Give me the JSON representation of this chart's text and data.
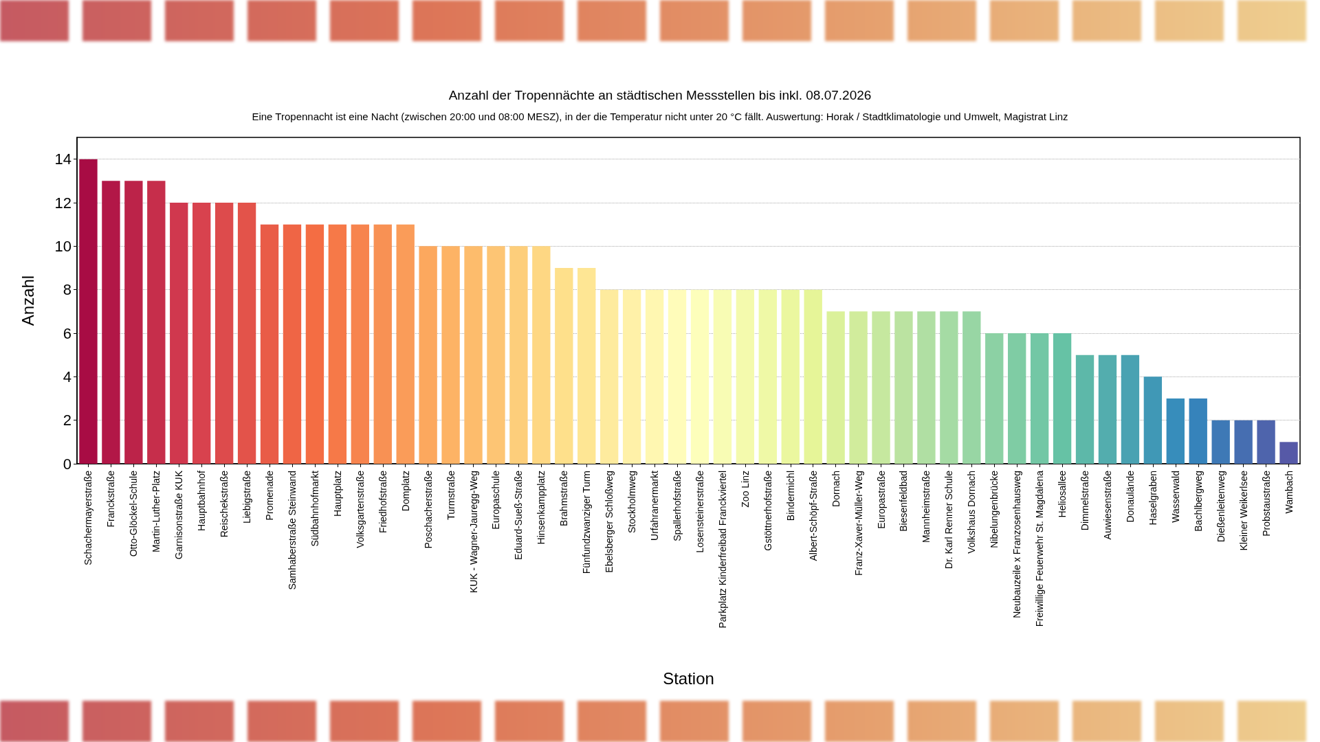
{
  "chart_data": {
    "type": "bar",
    "title": "Anzahl der Tropennächte an städtischen Messstellen bis inkl. 08.07.2026",
    "subtitle": "Eine Tropennacht ist eine Nacht (zwischen 20:00 und 08:00 MESZ), in der die Temperatur nicht unter 20 °C fällt. Auswertung: Horak / Stadtklimatologie und Umwelt, Magistrat Linz",
    "xlabel": "Station",
    "ylabel": "Anzahl",
    "categories": [
      "Schachermayerstraße",
      "Franckstraße",
      "Otto-Glöckel-Schule",
      "Martin-Luther-Platz",
      "Garnisonstraße KUK",
      "Hauptbahnhof",
      "Reischekstraße",
      "Liebigstraße",
      "Promenade",
      "Samhaberstraße Steinwand",
      "Südbahnhofmarkt",
      "Hauptplatz",
      "Volksgartenstraße",
      "Friedhofstraße",
      "Domplatz",
      "Poschacherstraße",
      "Turmstraße",
      "KUK - Wagner-Jauregg-Weg",
      "Europaschule",
      "Eduard-Sueß-Straße",
      "Hinsenkampplatz",
      "Brahmstraße",
      "Fünfundzwanziger Turm",
      "Ebelsberger Schloßweg",
      "Stockholmweg",
      "Urfahranermarkt",
      "Spallerhofstraße",
      "Losensteinerstraße",
      "Parkplatz Kinderfreibad Franckviertel",
      "Zoo Linz",
      "Gstöttnerhofstraße",
      "Bindermichl",
      "Albert-Schöpf-Straße",
      "Dornach",
      "Franz-Xaver-Müller-Weg",
      "Europastraße",
      "Biesenfeldbad",
      "Mannheimstraße",
      "Dr. Karl Renner Schule",
      "Volkshaus Dornach",
      "Nibelungenbrücke",
      "Neubauzeile x Franzosenhausweg",
      "Freiwillige Feuerwehr St. Magdalena",
      "Heliosallee",
      "Dimmelstraße",
      "Auwiesenstraße",
      "Donaulände",
      "Haselgraben",
      "Wasserwald",
      "Bachlbergweg",
      "Dießenleitenweg",
      "Kleiner Weikerlsee",
      "Probstaustraße",
      "Wambach"
    ],
    "values": [
      14,
      13,
      13,
      13,
      12,
      12,
      12,
      12,
      11,
      11,
      11,
      11,
      11,
      11,
      11,
      10,
      10,
      10,
      10,
      10,
      10,
      9,
      9,
      8,
      8,
      8,
      8,
      8,
      8,
      8,
      8,
      8,
      8,
      7,
      7,
      7,
      7,
      7,
      7,
      7,
      6,
      6,
      6,
      6,
      5,
      5,
      5,
      4,
      3,
      3,
      2,
      2,
      2,
      1
    ],
    "colors": [
      "#a80c44",
      "#b21747",
      "#bc2349",
      "#c62e4b",
      "#d0384e",
      "#d8424e",
      "#dd4b4c",
      "#e3534a",
      "#e95c47",
      "#ef6545",
      "#f46d43",
      "#f67948",
      "#f7844e",
      "#f89154",
      "#fa9c59",
      "#fca85e",
      "#fdb365",
      "#fdbc6c",
      "#fdc574",
      "#fdce7b",
      "#fed783",
      "#fee08b",
      "#fee694",
      "#feeb9e",
      "#fff1a8",
      "#fff7b1",
      "#fffcba",
      "#fdfebb",
      "#f8fcb4",
      "#f4faad",
      "#eff9a6",
      "#ebf79f",
      "#e6f598",
      "#dbf19a",
      "#d1ec9c",
      "#c6e89f",
      "#bbe3a1",
      "#b0dfa3",
      "#a5dba4",
      "#98d6a4",
      "#8cd1a4",
      "#7fcca4",
      "#73c7a5",
      "#66c2a5",
      "#5db8a9",
      "#53adae",
      "#49a2b2",
      "#4098b6",
      "#378dbb",
      "#3683bb",
      "#3e79b6",
      "#466eb1",
      "#4e64ac",
      "#5659a7"
    ],
    "ylim": [
      0,
      15
    ],
    "yticks": [
      0,
      2,
      4,
      6,
      8,
      10,
      12,
      14
    ],
    "grid": "y"
  }
}
